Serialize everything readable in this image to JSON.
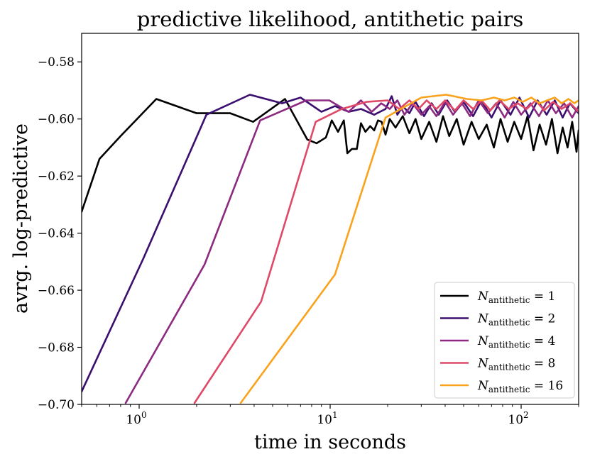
{
  "chart_data": {
    "type": "line",
    "title": "predictive likelihood, antithetic pairs",
    "xlabel": "time in seconds",
    "ylabel": "avrg. log-predictive",
    "xscale": "log",
    "xlim": [
      0.5,
      200
    ],
    "ylim": [
      -0.7,
      -0.57
    ],
    "yticks": [
      -0.7,
      -0.68,
      -0.66,
      -0.64,
      -0.62,
      -0.6,
      -0.58
    ],
    "ytick_labels": [
      "−0.70",
      "−0.68",
      "−0.66",
      "−0.64",
      "−0.62",
      "−0.60",
      "−0.58"
    ],
    "xticks": [
      1,
      10,
      100
    ],
    "xtick_labels": [
      "10",
      "10",
      "10"
    ],
    "xtick_exponents": [
      "0",
      "1",
      "2"
    ],
    "legend_position": "lower-right",
    "series": [
      {
        "name": "N_antithetic = 1",
        "legend_label_symbol": "N",
        "legend_label_sub": "antithetic",
        "legend_label_rest": " = 1",
        "color": "#000000",
        "x": [
          0.5,
          0.62,
          0.8,
          1.23,
          2.0,
          2.3,
          3.0,
          3.95,
          5.8,
          7.6,
          8.5,
          9.5,
          10.2,
          11.0,
          11.8,
          12.3,
          13.0,
          13.8,
          14.5,
          15.3,
          16.2,
          17.0,
          17.8,
          18.6,
          19.5,
          20.5,
          22,
          24,
          26,
          28,
          30,
          33,
          36,
          39,
          42,
          46,
          50,
          55,
          60,
          66,
          72,
          78,
          85,
          92,
          100,
          108,
          116,
          125,
          135,
          145,
          155,
          165,
          175,
          185,
          195,
          200
        ],
        "y": [
          -0.6325,
          -0.614,
          -0.606,
          -0.593,
          -0.598,
          -0.598,
          -0.598,
          -0.601,
          -0.593,
          -0.6072,
          -0.6085,
          -0.6065,
          -0.6005,
          -0.6045,
          -0.6005,
          -0.612,
          -0.6105,
          -0.6105,
          -0.6015,
          -0.6045,
          -0.6025,
          -0.604,
          -0.6005,
          -0.601,
          -0.6055,
          -0.6,
          -0.603,
          -0.599,
          -0.605,
          -0.6,
          -0.607,
          -0.601,
          -0.608,
          -0.599,
          -0.606,
          -0.6,
          -0.609,
          -0.601,
          -0.607,
          -0.602,
          -0.61,
          -0.6,
          -0.608,
          -0.601,
          -0.607,
          -0.599,
          -0.611,
          -0.602,
          -0.609,
          -0.6,
          -0.612,
          -0.603,
          -0.61,
          -0.601,
          -0.6115,
          -0.604
        ]
      },
      {
        "name": "N_antithetic = 2",
        "legend_label_symbol": "N",
        "legend_label_sub": "antithetic",
        "legend_label_rest": " = 2",
        "color": "#3b0f70",
        "x": [
          0.5,
          1.05,
          2.25,
          3.8,
          5.6,
          7.0,
          9.0,
          10.6,
          12.5,
          14.5,
          17.0,
          19.5,
          21.0,
          22.5,
          24,
          26,
          28,
          31,
          34,
          37,
          41,
          45,
          50,
          56,
          62,
          70,
          78,
          88,
          98,
          110,
          122,
          136,
          150,
          165,
          180,
          200
        ],
        "y": [
          -0.6955,
          -0.649,
          -0.5985,
          -0.5915,
          -0.5945,
          -0.5925,
          -0.5975,
          -0.5955,
          -0.5975,
          -0.5965,
          -0.5985,
          -0.5965,
          -0.592,
          -0.5985,
          -0.5955,
          -0.598,
          -0.594,
          -0.599,
          -0.5945,
          -0.5985,
          -0.5935,
          -0.5975,
          -0.594,
          -0.599,
          -0.5935,
          -0.5995,
          -0.5935,
          -0.5985,
          -0.5925,
          -0.5995,
          -0.5935,
          -0.5985,
          -0.5935,
          -0.5995,
          -0.5945,
          -0.598
        ]
      },
      {
        "name": "N_antithetic = 4",
        "legend_label_symbol": "N",
        "legend_label_sub": "antithetic",
        "legend_label_rest": " = 4",
        "color": "#8c2981",
        "x": [
          0.85,
          2.2,
          4.3,
          7.5,
          9.9,
          12.5,
          14.5,
          16.5,
          18.5,
          20.5,
          22.5,
          24.5,
          27,
          30,
          33,
          36,
          40,
          44,
          49,
          54,
          60,
          67,
          74,
          82,
          91,
          100,
          112,
          124,
          138,
          152,
          168,
          185,
          200
        ],
        "y": [
          -0.6995,
          -0.651,
          -0.6005,
          -0.5935,
          -0.5935,
          -0.5975,
          -0.5935,
          -0.5975,
          -0.5945,
          -0.5965,
          -0.5935,
          -0.5985,
          -0.5945,
          -0.5985,
          -0.5955,
          -0.599,
          -0.594,
          -0.5985,
          -0.5945,
          -0.599,
          -0.5935,
          -0.598,
          -0.5945,
          -0.5995,
          -0.594,
          -0.5985,
          -0.5945,
          -0.599,
          -0.5935,
          -0.598,
          -0.5945,
          -0.5995,
          -0.5955
        ]
      },
      {
        "name": "N_antithetic = 8",
        "legend_label_symbol": "N",
        "legend_label_sub": "antithetic",
        "legend_label_rest": " = 8",
        "color": "#de4968",
        "x": [
          1.95,
          4.35,
          8.4,
          11.5,
          15.5,
          20.0,
          23,
          26,
          29,
          32,
          36,
          40,
          45,
          50,
          56,
          62,
          69,
          77,
          86,
          96,
          107,
          119,
          132,
          147,
          163,
          181,
          200
        ],
        "y": [
          -0.6995,
          -0.664,
          -0.601,
          -0.5965,
          -0.594,
          -0.5935,
          -0.5965,
          -0.5935,
          -0.5965,
          -0.5935,
          -0.5965,
          -0.5935,
          -0.597,
          -0.5935,
          -0.5965,
          -0.5935,
          -0.597,
          -0.5935,
          -0.5965,
          -0.5945,
          -0.5965,
          -0.5935,
          -0.597,
          -0.594,
          -0.5965,
          -0.5945,
          -0.5975
        ]
      },
      {
        "name": "N_antithetic = 16",
        "legend_label_symbol": "N",
        "legend_label_sub": "antithetic",
        "legend_label_rest": " = 16",
        "color": "#f9a21c",
        "x": [
          3.4,
          10.6,
          19.5,
          30.0,
          40.5,
          52,
          62,
          72,
          82,
          92,
          102,
          113,
          125,
          137,
          150,
          163,
          177,
          190,
          200
        ],
        "y": [
          -0.6995,
          -0.6545,
          -0.5995,
          -0.5925,
          -0.5915,
          -0.593,
          -0.5935,
          -0.5925,
          -0.5935,
          -0.5925,
          -0.594,
          -0.5925,
          -0.5945,
          -0.5935,
          -0.5925,
          -0.5945,
          -0.593,
          -0.5945,
          -0.5935
        ]
      }
    ]
  }
}
